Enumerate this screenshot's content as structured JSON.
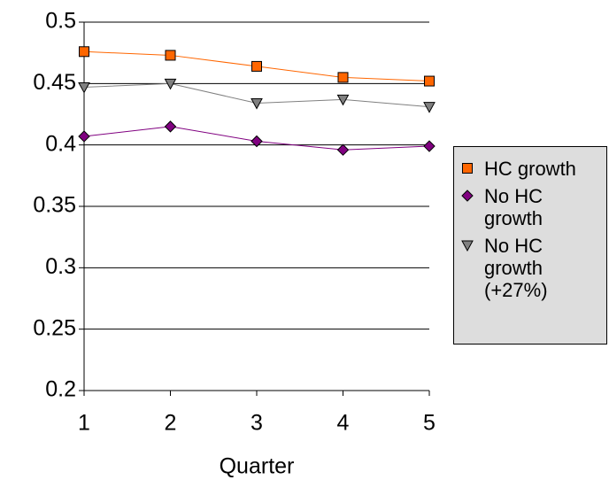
{
  "chart_data": {
    "type": "line",
    "x_label": "Quarter",
    "x": [
      1,
      2,
      3,
      4,
      5
    ],
    "series": [
      {
        "name": "HC growth",
        "color": "#ff6600",
        "marker": "square",
        "values": [
          0.476,
          0.473,
          0.464,
          0.455,
          0.452
        ]
      },
      {
        "name": "No HC growth",
        "color": "#800080",
        "marker": "diamond",
        "values": [
          0.407,
          0.415,
          0.403,
          0.396,
          0.399
        ]
      },
      {
        "name": "No HC growth (+27%)",
        "color": "#808080",
        "marker": "triangle",
        "values": [
          0.447,
          0.45,
          0.434,
          0.437,
          0.431
        ]
      }
    ],
    "xlim": [
      1,
      5
    ],
    "xticks": [
      1,
      2,
      3,
      4,
      5
    ],
    "ylim": [
      0.2,
      0.5
    ],
    "yticks": [
      0.2,
      0.25,
      0.3,
      0.35,
      0.4,
      0.45,
      0.5
    ],
    "grid": true,
    "legend": "right"
  }
}
